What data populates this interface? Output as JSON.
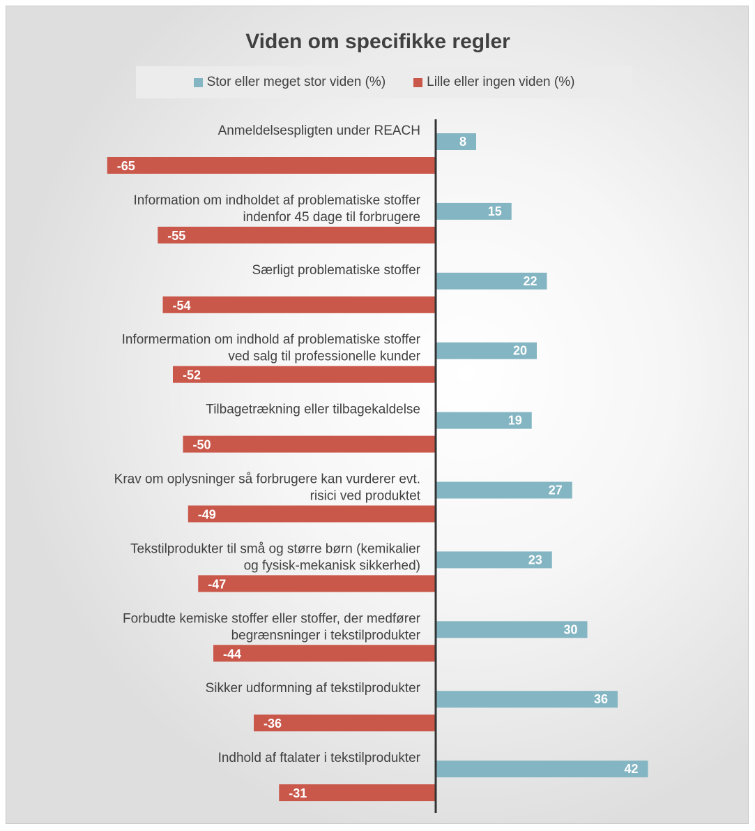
{
  "colors": {
    "positive": "#84b5c2",
    "negative": "#c9574a",
    "axis": "#333333",
    "label_text": "#404040",
    "value_text": "#ffffff"
  },
  "chart_data": {
    "type": "bar",
    "orientation": "horizontal",
    "title": "Viden om specifikke regler",
    "legend_position": "top",
    "grid": false,
    "xlim": [
      -65,
      42
    ],
    "categories": [
      "Anmeldelsespligten under REACH",
      "Information om indholdet af problematiske stoffer indenfor 45 dage til forbrugere",
      "Særligt problematiske stoffer",
      "Informermation om indhold af problematiske stoffer ved salg til professionelle kunder",
      "Tilbagetrækning eller tilbagekaldelse",
      "Krav om oplysninger så forbrugere kan vurderer evt. risici ved produktet",
      "Tekstilprodukter til små og større børn (kemikalier og fysisk-mekanisk sikkerhed)",
      "Forbudte kemiske stoffer eller stoffer, der medfører begrænsninger i tekstilprodukter",
      "Sikker udformning af tekstilprodukter",
      "Indhold af ftalater i tekstilprodukter"
    ],
    "category_lines": [
      [
        "Anmeldelsespligten under REACH"
      ],
      [
        "Information om indholdet af problematiske stoffer",
        "indenfor 45 dage til forbrugere"
      ],
      [
        "Særligt problematiske stoffer"
      ],
      [
        "Informermation om indhold af problematiske stoffer",
        "ved salg til professionelle kunder"
      ],
      [
        "Tilbagetrækning eller tilbagekaldelse"
      ],
      [
        "Krav om oplysninger så forbrugere kan vurderer evt.",
        "risici ved produktet"
      ],
      [
        "Tekstilprodukter til små og større børn (kemikalier",
        "og fysisk-mekanisk sikkerhed)"
      ],
      [
        "Forbudte kemiske stoffer eller stoffer, der medfører",
        "begrænsninger i tekstilprodukter"
      ],
      [
        "Sikker udformning af tekstilprodukter"
      ],
      [
        "Indhold af ftalater i tekstilprodukter"
      ]
    ],
    "series": [
      {
        "name": "Stor eller meget stor viden (%)",
        "values": [
          8,
          15,
          22,
          20,
          19,
          27,
          23,
          30,
          36,
          42
        ]
      },
      {
        "name": "Lille eller ingen viden (%)",
        "values": [
          -65,
          -55,
          -54,
          -52,
          -50,
          -49,
          -47,
          -44,
          -36,
          -31
        ]
      }
    ]
  }
}
